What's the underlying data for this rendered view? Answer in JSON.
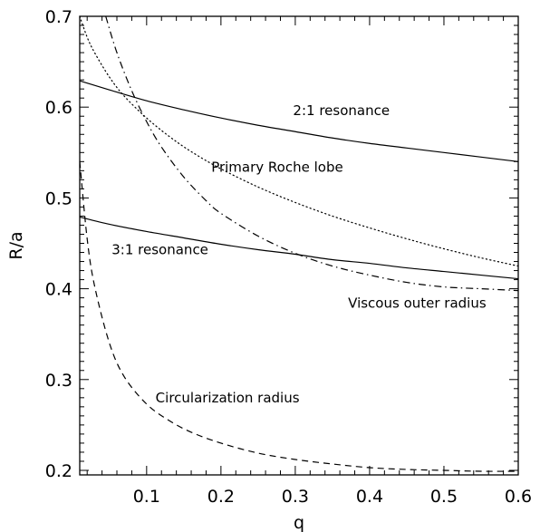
{
  "chart_data": {
    "type": "line",
    "xlabel": "q",
    "ylabel": "R/a",
    "xlim": [
      0.01,
      0.6
    ],
    "ylim": [
      0.195,
      0.7
    ],
    "x_ticks": [
      "0.1",
      "0.2",
      "0.3",
      "0.4",
      "0.5",
      "0.6"
    ],
    "x_tick_values": [
      0.1,
      0.2,
      0.3,
      0.4,
      0.5,
      0.6
    ],
    "y_ticks": [
      "0.2",
      "0.3",
      "0.4",
      "0.5",
      "0.6",
      "0.7"
    ],
    "y_tick_values": [
      0.2,
      0.3,
      0.4,
      0.5,
      0.6,
      0.7
    ],
    "grid": false,
    "series": [
      {
        "name": "2:1 resonance",
        "style": "solid",
        "x": [
          0.01,
          0.05,
          0.1,
          0.15,
          0.2,
          0.25,
          0.3,
          0.35,
          0.4,
          0.45,
          0.5,
          0.55,
          0.6
        ],
        "y": [
          0.629,
          0.619,
          0.607,
          0.597,
          0.588,
          0.58,
          0.573,
          0.566,
          0.56,
          0.555,
          0.55,
          0.545,
          0.54
        ]
      },
      {
        "name": "3:1 resonance",
        "style": "solid",
        "x": [
          0.01,
          0.05,
          0.1,
          0.15,
          0.2,
          0.25,
          0.3,
          0.35,
          0.4,
          0.45,
          0.5,
          0.55,
          0.6
        ],
        "y": [
          0.479,
          0.471,
          0.463,
          0.456,
          0.449,
          0.443,
          0.438,
          0.432,
          0.428,
          0.423,
          0.419,
          0.415,
          0.411
        ]
      },
      {
        "name": "Primary Roche lobe",
        "style": "dotted",
        "x": [
          0.01,
          0.02,
          0.03,
          0.05,
          0.07,
          0.1,
          0.13,
          0.16,
          0.2,
          0.25,
          0.3,
          0.35,
          0.4,
          0.45,
          0.5,
          0.55,
          0.6
        ],
        "y": [
          0.7,
          0.677,
          0.66,
          0.633,
          0.612,
          0.588,
          0.568,
          0.551,
          0.532,
          0.512,
          0.495,
          0.48,
          0.467,
          0.455,
          0.444,
          0.434,
          0.425
        ]
      },
      {
        "name": "Viscous outer radius",
        "style": "dashdot",
        "x": [
          0.045,
          0.06,
          0.08,
          0.1,
          0.12,
          0.15,
          0.18,
          0.2,
          0.25,
          0.3,
          0.35,
          0.4,
          0.45,
          0.5,
          0.55,
          0.6
        ],
        "y": [
          0.7,
          0.66,
          0.618,
          0.584,
          0.556,
          0.523,
          0.497,
          0.483,
          0.458,
          0.439,
          0.425,
          0.415,
          0.407,
          0.402,
          0.4,
          0.398
        ]
      },
      {
        "name": "Circularization radius",
        "style": "dashed",
        "x": [
          0.01,
          0.02,
          0.03,
          0.05,
          0.07,
          0.1,
          0.13,
          0.16,
          0.2,
          0.25,
          0.3,
          0.35,
          0.4,
          0.45,
          0.5,
          0.55,
          0.6
        ],
        "y": [
          0.54,
          0.455,
          0.403,
          0.34,
          0.303,
          0.273,
          0.255,
          0.242,
          0.23,
          0.219,
          0.212,
          0.207,
          0.203,
          0.201,
          0.2,
          0.199,
          0.199
        ]
      }
    ],
    "annotations": [
      {
        "text": "2:1 resonance",
        "x": 0.297,
        "y": 0.591
      },
      {
        "text": "Primary Roche lobe",
        "x": 0.187,
        "y": 0.529
      },
      {
        "text": "3:1 resonance",
        "x": 0.053,
        "y": 0.438
      },
      {
        "text": "Viscous outer radius",
        "x": 0.371,
        "y": 0.379
      },
      {
        "text": "Circularization radius",
        "x": 0.112,
        "y": 0.275
      }
    ]
  }
}
